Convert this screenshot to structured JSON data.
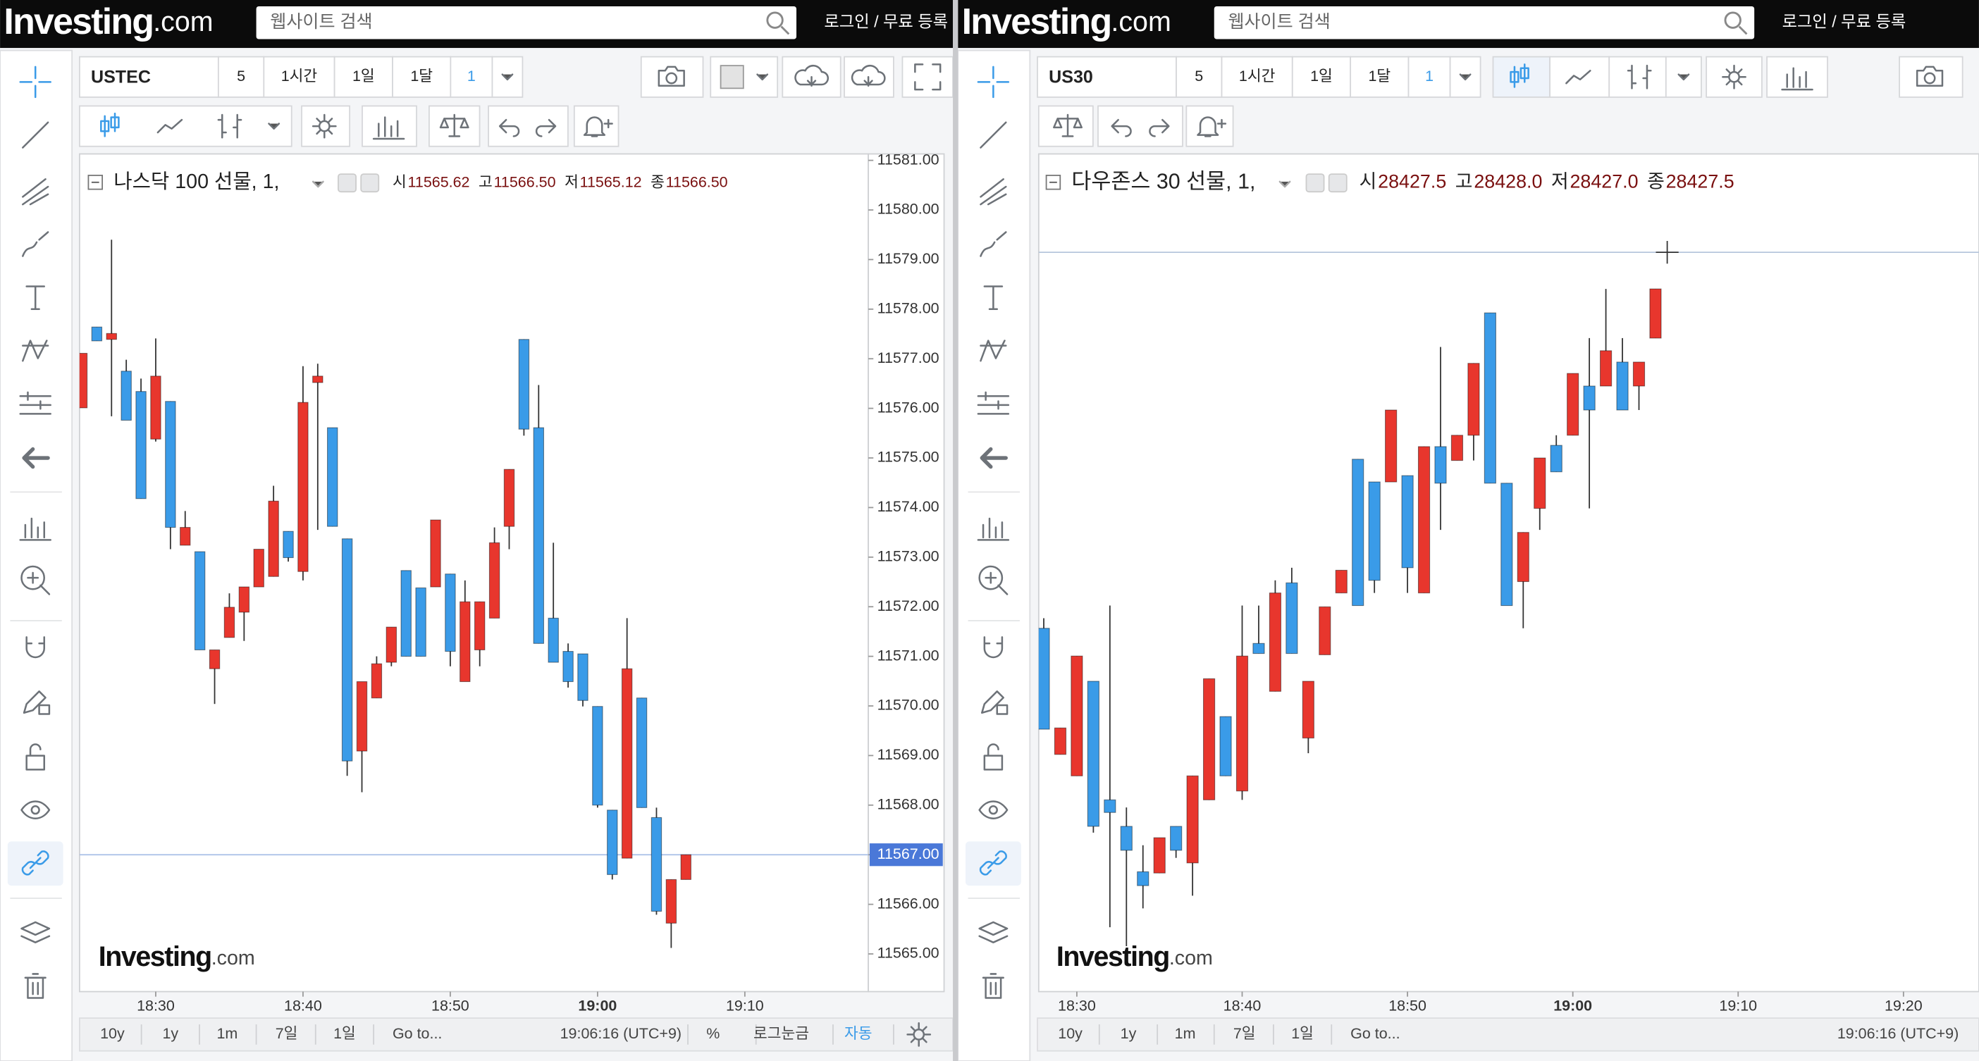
{
  "chart_data": [
    {
      "type": "candlestick",
      "title": "나스닥 100 선물, 1,",
      "x": [
        "18:25",
        "18:26",
        "18:27",
        "18:28",
        "18:29",
        "18:30",
        "18:31",
        "18:32",
        "18:33",
        "18:34",
        "18:35",
        "18:36",
        "18:37",
        "18:38",
        "18:39",
        "18:40",
        "18:41",
        "18:42",
        "18:43",
        "18:44",
        "18:45",
        "18:46",
        "18:47",
        "18:48",
        "18:49",
        "18:50",
        "18:51",
        "18:52",
        "18:53",
        "18:54",
        "18:55",
        "18:56",
        "18:57",
        "18:58",
        "18:59",
        "19:00",
        "19:01",
        "19:02",
        "19:03",
        "19:04",
        "19:05",
        "19:06"
      ],
      "open": [
        11576.01,
        11577.64,
        11577.39,
        11576.75,
        11576.34,
        11575.38,
        11576.14,
        11573.24,
        11573.11,
        11570.75,
        11571.38,
        11571.89,
        11572.4,
        11572.61,
        11573.52,
        11572.71,
        11576.52,
        11575.61,
        11573.37,
        11569.09,
        11570.16,
        11570.88,
        11572.73,
        11572.38,
        11572.4,
        11572.66,
        11570.49,
        11571.13,
        11571.77,
        11573.62,
        11577.39,
        11575.61,
        11571.77,
        11571.1,
        11571.05,
        11569.99,
        11567.9,
        11566.93,
        11570.16,
        11567.75,
        11565.62,
        11566.5
      ],
      "high": [
        11577.11,
        11577.64,
        11579.4,
        11576.98,
        11576.6,
        11577.41,
        11576.14,
        11573.93,
        11573.11,
        11571.13,
        11572.27,
        11572.4,
        11573.16,
        11574.44,
        11573.52,
        11576.85,
        11576.9,
        11575.61,
        11573.37,
        11570.49,
        11571.0,
        11571.59,
        11572.73,
        11572.38,
        11573.75,
        11572.66,
        11572.53,
        11572.1,
        11573.6,
        11574.77,
        11577.39,
        11576.47,
        11573.29,
        11571.26,
        11571.05,
        11569.99,
        11567.9,
        11571.77,
        11570.16,
        11567.95,
        11566.5,
        11567.0
      ],
      "low": [
        11576.01,
        11577.36,
        11575.84,
        11575.76,
        11574.18,
        11575.33,
        11573.16,
        11573.24,
        11571.13,
        11570.04,
        11571.38,
        11571.31,
        11572.4,
        11572.61,
        11572.91,
        11572.53,
        11573.55,
        11573.62,
        11568.59,
        11568.26,
        11570.16,
        11570.8,
        11571.0,
        11571.0,
        11572.4,
        11570.8,
        11570.49,
        11570.8,
        11571.77,
        11573.16,
        11575.45,
        11571.26,
        11570.88,
        11570.37,
        11569.99,
        11567.95,
        11566.5,
        11566.93,
        11567.95,
        11565.79,
        11565.12,
        11566.5
      ],
      "close": [
        11577.11,
        11577.36,
        11577.51,
        11575.76,
        11574.18,
        11576.65,
        11573.6,
        11573.6,
        11571.13,
        11571.13,
        11571.99,
        11572.4,
        11573.16,
        11574.13,
        11572.99,
        11576.12,
        11576.65,
        11573.62,
        11568.89,
        11570.49,
        11570.85,
        11571.59,
        11571.0,
        11571.0,
        11573.75,
        11571.1,
        11572.1,
        11572.1,
        11573.29,
        11574.77,
        11575.58,
        11571.26,
        11570.88,
        11570.49,
        11570.11,
        11568.0,
        11566.6,
        11570.75,
        11567.95,
        11565.86,
        11566.5,
        11567.0
      ],
      "xlim": [
        "18:25",
        "19:18"
      ],
      "xticks": [
        "18:30",
        "18:40",
        "18:50",
        "19:00",
        "19:10"
      ],
      "ylim": [
        11564.24,
        11581.13
      ],
      "yticks": [
        {
          "value": 11565,
          "label": "11565.00"
        },
        {
          "value": 11566,
          "label": "11566.00"
        },
        {
          "value": 11567,
          "label": "11567.00"
        },
        {
          "value": 11568,
          "label": "11568.00"
        },
        {
          "value": 11569,
          "label": "11569.00"
        },
        {
          "value": 11570,
          "label": "11570.00"
        },
        {
          "value": 11571,
          "label": "11571.00"
        },
        {
          "value": 11572,
          "label": "11572.00"
        },
        {
          "value": 11573,
          "label": "11573.00"
        },
        {
          "value": 11574,
          "label": "11574.00"
        },
        {
          "value": 11575,
          "label": "11575.00"
        },
        {
          "value": 11576,
          "label": "11576.00"
        },
        {
          "value": 11577,
          "label": "11577.00"
        },
        {
          "value": 11578,
          "label": "11578.00"
        },
        {
          "value": 11579,
          "label": "11579.00"
        },
        {
          "value": 11580,
          "label": "11580.00"
        },
        {
          "value": 11581,
          "label": "11581.00"
        }
      ],
      "last_price": {
        "value": 11567,
        "label": "11567.00"
      },
      "up_color": "#e8362d",
      "down_color": "#3a9be8"
    },
    {
      "type": "candlestick",
      "title": "다우존스 30 선물, 1,",
      "x": [
        "18:28",
        "18:29",
        "18:30",
        "18:31",
        "18:32",
        "18:33",
        "18:34",
        "18:35",
        "18:36",
        "18:37",
        "18:38",
        "18:39",
        "18:40",
        "18:41",
        "18:42",
        "18:43",
        "18:44",
        "18:45",
        "18:46",
        "18:47",
        "18:48",
        "18:49",
        "18:50",
        "18:51",
        "18:52",
        "18:53",
        "18:54",
        "18:55",
        "18:56",
        "18:57",
        "18:58",
        "18:59",
        "19:00",
        "19:01",
        "19:02",
        "19:03",
        "19:04",
        "19:05"
      ],
      "open": [
        28367.9,
        28347.9,
        28344.5,
        28359.5,
        28340.7,
        28336.5,
        28329.3,
        28329.1,
        28336.5,
        28330.7,
        28340.7,
        28353.9,
        28342.1,
        28365.5,
        28357.9,
        28375.1,
        28350.5,
        28363.7,
        28373.5,
        28394.7,
        28391.1,
        28391.1,
        28392.1,
        28373.5,
        28396.7,
        28394.5,
        28398.5,
        28417.9,
        28390.9,
        28375.3,
        28386.9,
        28396.9,
        28398.5,
        28406.3,
        28406.3,
        28410.1,
        28406.3,
        28413.9
      ],
      "high": [
        28369.5,
        28352.1,
        28363.5,
        28359.5,
        28371.5,
        28339.5,
        28333.5,
        28334.7,
        28336.5,
        28344.5,
        28359.9,
        28353.9,
        28371.5,
        28371.5,
        28375.5,
        28377.5,
        28359.5,
        28371.3,
        28377.1,
        28394.7,
        28391.1,
        28402.5,
        28392.1,
        28396.7,
        28412.5,
        28398.5,
        28409.9,
        28417.9,
        28390.9,
        28383.1,
        28394.9,
        28398.5,
        28408.3,
        28413.9,
        28421.7,
        28413.9,
        28410.1,
        28421.7
      ],
      "low": [
        28351.9,
        28347.9,
        28344.5,
        28335.5,
        28320.5,
        28317.5,
        28323.5,
        28329.1,
        28331.5,
        28325.5,
        28340.7,
        28344.5,
        28340.7,
        28363.9,
        28357.9,
        28363.9,
        28348.1,
        28363.7,
        28373.5,
        28371.5,
        28373.5,
        28391.1,
        28373.5,
        28373.5,
        28383.5,
        28394.5,
        28394.5,
        28390.9,
        28371.5,
        28367.9,
        28383.5,
        28392.7,
        28398.5,
        28386.9,
        28406.3,
        28402.5,
        28402.5,
        28413.9
      ],
      "close": [
        28351.9,
        28352.1,
        28363.5,
        28336.5,
        28338.7,
        28332.7,
        28327.1,
        28334.7,
        28332.7,
        28344.5,
        28359.9,
        28344.5,
        28363.5,
        28363.9,
        28373.5,
        28363.9,
        28359.5,
        28371.3,
        28377.1,
        28371.5,
        28375.5,
        28402.5,
        28377.5,
        28396.7,
        28390.9,
        28398.5,
        28409.9,
        28390.9,
        28371.5,
        28383.1,
        28394.9,
        28392.7,
        28408.3,
        28402.5,
        28411.9,
        28402.5,
        28410.1,
        28421.7
      ],
      "xlim": [
        "18:28",
        "19:25"
      ],
      "xticks": [
        "18:30",
        "18:40",
        "18:50",
        "19:00",
        "19:10",
        "19:20"
      ],
      "ylim": [
        28310.3,
        28443.1
      ],
      "up_color": "#e8362d",
      "down_color": "#3a9be8"
    }
  ],
  "windows": [
    {
      "logo": "Investing",
      "logo_suffix": ".com",
      "search": "웹사이트 검색",
      "login": "로그인 / 무료 등록",
      "symbol": "USTEC",
      "intervals": [
        "5",
        "1시간",
        "1일",
        "1달",
        "1"
      ],
      "ohlc": [
        "시",
        "11565.62",
        "고",
        "11566.50",
        "저",
        "11565.12",
        "종",
        "11566.50"
      ],
      "watermark": "Investing",
      "watermark_suffix": ".com",
      "ranges": [
        "10y",
        "1y",
        "1m",
        "7일",
        "1일"
      ],
      "goto": "Go to...",
      "clock": "19:06:16 (UTC+9)",
      "scale_options": [
        "%",
        "로그눈금",
        "자동"
      ]
    },
    {
      "logo": "Investing",
      "logo_suffix": ".com",
      "search": "웹사이트 검색",
      "login": "로그인 / 무료 등록",
      "symbol": "US30",
      "intervals": [
        "5",
        "1시간",
        "1일",
        "1달",
        "1"
      ],
      "ohlc": [
        "시",
        "28427.5",
        "고",
        "28428.0",
        "저",
        "28427.0",
        "종",
        "28427.5"
      ],
      "watermark": "Investing",
      "watermark_suffix": ".com",
      "ranges": [
        "10y",
        "1y",
        "1m",
        "7일",
        "1일"
      ],
      "goto": "Go to...",
      "clock": "19:06:16 (UTC+9)"
    }
  ]
}
